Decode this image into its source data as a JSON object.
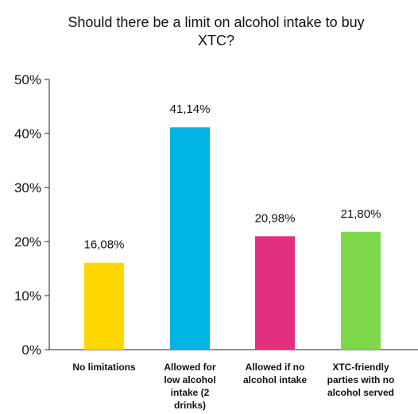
{
  "chart_data": {
    "type": "bar",
    "title_lines": [
      "Should there be a limit on alcohol intake to buy",
      "XTC?"
    ],
    "categories": [
      [
        "No limitations"
      ],
      [
        "Allowed for",
        "low alcohol",
        "intake (2",
        "drinks)"
      ],
      [
        "Allowed if no",
        "alcohol intake"
      ],
      [
        "XTC-friendly",
        "parties with no",
        "alcohol served"
      ]
    ],
    "values": [
      16.08,
      41.14,
      20.98,
      21.8
    ],
    "value_labels": [
      "16,08%",
      "41,14%",
      "20,98%",
      "21,80%"
    ],
    "colors": [
      "#ffd700",
      "#00b4e3",
      "#e22f7f",
      "#7ed84a"
    ],
    "ylim": [
      0,
      50
    ],
    "yticks": [
      0,
      10,
      20,
      30,
      40,
      50
    ],
    "ytick_labels": [
      "0%",
      "10%",
      "20%",
      "30%",
      "40%",
      "50%"
    ],
    "grid": false,
    "legend": "none"
  }
}
